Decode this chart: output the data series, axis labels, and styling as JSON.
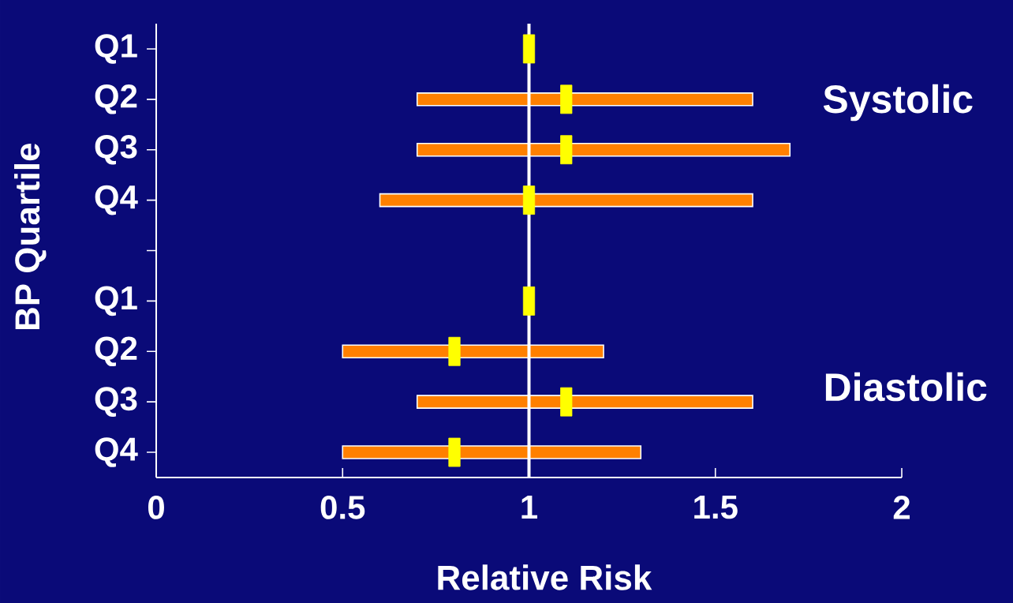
{
  "chart_data": {
    "type": "bar",
    "orientation": "horizontal",
    "xlabel": "Relative Risk",
    "ylabel": "BP Quartile",
    "categories": [
      "Q1",
      "Q2",
      "Q3",
      "Q4",
      null,
      "Q1",
      "Q2",
      "Q3",
      "Q4"
    ],
    "xlim": [
      0,
      2
    ],
    "xticks": [
      0,
      0.5,
      1,
      1.5,
      2
    ],
    "series": [
      {
        "color": "#ff8000",
        "base": [
          null,
          0.7,
          0.7,
          0.6,
          null,
          null,
          0.5,
          0.7,
          0.5
        ],
        "values": [
          null,
          0.9,
          1.0,
          1.0,
          null,
          null,
          0.7,
          0.9,
          0.8
        ]
      },
      {
        "type": "scatter",
        "color": "#ffff00",
        "values": [
          1.0,
          1.1,
          1.1,
          1.0,
          null,
          1.0,
          0.8,
          1.1,
          0.8
        ]
      }
    ],
    "marker": "square",
    "ref_lines": [
      {
        "axis": "x",
        "value": 1,
        "color": "#ffffff"
      }
    ],
    "annotations": [
      "Systolic",
      "Diastolic"
    ],
    "grid": false
  }
}
